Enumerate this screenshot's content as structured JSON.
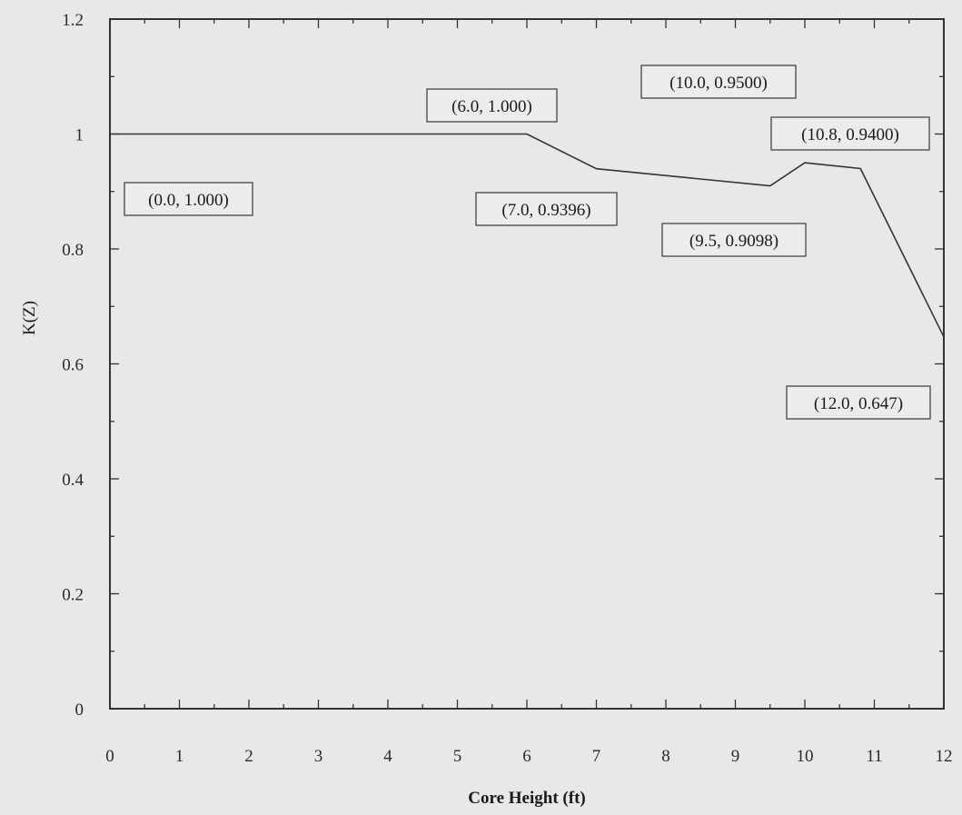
{
  "chart_data": {
    "type": "line",
    "title": "",
    "xlabel": "Core Height (ft)",
    "ylabel": "K(Z)",
    "xlim": [
      0,
      12
    ],
    "ylim": [
      0,
      1.2
    ],
    "xticks": [
      0,
      1,
      2,
      3,
      4,
      5,
      6,
      7,
      8,
      9,
      10,
      11,
      12
    ],
    "xtick_labels": [
      "0",
      "1",
      "2",
      "3",
      "4",
      "5",
      "6",
      "7",
      "8",
      "9",
      "10",
      "11",
      "12"
    ],
    "yticks": [
      0,
      0.2,
      0.4,
      0.6,
      0.8,
      1,
      1.2
    ],
    "ytick_labels": [
      "0",
      "0.2",
      "0.4",
      "0.6",
      "0.8",
      "1",
      "1.2"
    ],
    "grid": false,
    "legend": "none",
    "line_color": "#333333",
    "series": [
      {
        "x": [
          0.0,
          6.0,
          7.0,
          9.5,
          10.0,
          10.8,
          12.0
        ],
        "y": [
          1.0,
          1.0,
          0.9396,
          0.9098,
          0.95,
          0.94,
          0.647
        ]
      }
    ],
    "annotations": [
      {
        "text": "(0.0, 1.000)"
      },
      {
        "text": "(6.0, 1.000)"
      },
      {
        "text": "(7.0, 0.9396)"
      },
      {
        "text": "(9.5, 0.9098)"
      },
      {
        "text": "(10.0, 0.9500)"
      },
      {
        "text": "(10.8, 0.9400)"
      },
      {
        "text": "(12.0, 0.647)"
      }
    ]
  }
}
